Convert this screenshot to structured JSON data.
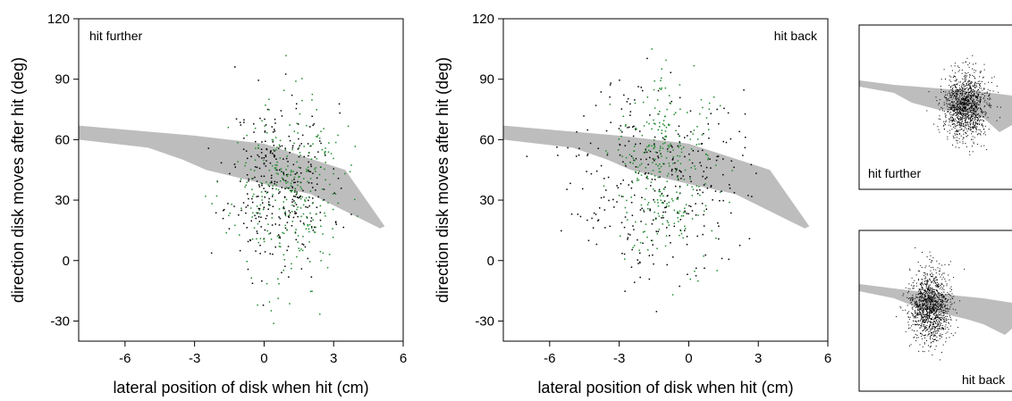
{
  "chart_data": [
    {
      "type": "scatter",
      "title": "",
      "annotation": "hit further",
      "xlabel": "lateral position of disk when hit (cm)",
      "ylabel": "direction disk moves after hit (deg)",
      "xlim": [
        -8,
        6
      ],
      "ylim": [
        -40,
        120
      ],
      "xticks": [
        -6,
        -3,
        0,
        3,
        6
      ],
      "yticks": [
        -30,
        0,
        30,
        60,
        90,
        120
      ],
      "grid": false,
      "band": {
        "upper": [
          [
            -8,
            67
          ],
          [
            -3,
            62
          ],
          [
            0,
            58
          ],
          [
            3.5,
            45
          ],
          [
            5.2,
            17
          ]
        ],
        "lower": [
          [
            -8,
            60
          ],
          [
            -5,
            56
          ],
          [
            -3.5,
            50
          ],
          [
            -2.5,
            45
          ],
          [
            0,
            38
          ],
          [
            2,
            33
          ],
          [
            5,
            16
          ]
        ]
      },
      "series": [
        {
          "color": "#000000",
          "cluster": {
            "x_mean": 0.7,
            "x_sd": 1.1,
            "y_mean": 38,
            "y_sd": 20,
            "n": 330,
            "seed": 11
          }
        },
        {
          "color": "#1f8a2e",
          "cluster": {
            "x_mean": 1.0,
            "x_sd": 1.2,
            "y_mean": 34,
            "y_sd": 22,
            "n": 300,
            "seed": 23
          }
        }
      ]
    },
    {
      "type": "scatter",
      "title": "",
      "annotation": "hit back",
      "xlabel": "lateral position of disk when hit (cm)",
      "ylabel": "direction disk moves after hit (deg)",
      "xlim": [
        -8,
        6
      ],
      "ylim": [
        -40,
        120
      ],
      "xticks": [
        -6,
        -3,
        0,
        3,
        6
      ],
      "yticks": [
        -30,
        0,
        30,
        60,
        90,
        120
      ],
      "grid": false,
      "band": {
        "upper": [
          [
            -8,
            67
          ],
          [
            -3,
            62
          ],
          [
            0,
            58
          ],
          [
            3.5,
            45
          ],
          [
            5.2,
            17
          ]
        ],
        "lower": [
          [
            -8,
            60
          ],
          [
            -5,
            56
          ],
          [
            -3.5,
            50
          ],
          [
            -2.5,
            45
          ],
          [
            0,
            38
          ],
          [
            2,
            33
          ],
          [
            5,
            16
          ]
        ]
      },
      "series": [
        {
          "color": "#000000",
          "cluster": {
            "x_mean": -1.4,
            "x_sd": 1.8,
            "y_mean": 42,
            "y_sd": 24,
            "n": 330,
            "seed": 37
          }
        },
        {
          "color": "#1f8a2e",
          "cluster": {
            "x_mean": -1.0,
            "x_sd": 1.1,
            "y_mean": 46,
            "y_sd": 22,
            "n": 300,
            "seed": 41
          }
        }
      ]
    },
    {
      "type": "scatter",
      "annotation": "hit further",
      "series": [
        {
          "color": "#000000",
          "cluster": {
            "x_mean": 0.5,
            "x_sd": 0.9,
            "y_mean": 0.5,
            "y_sd": 0.55,
            "n": 1200,
            "seed": 53
          }
        }
      ]
    },
    {
      "type": "scatter",
      "annotation": "hit back",
      "series": [
        {
          "color": "#000000",
          "cluster": {
            "x_mean": -0.3,
            "x_sd": 0.8,
            "y_mean": 0.4,
            "y_sd": 0.6,
            "n": 1200,
            "seed": 67
          }
        }
      ]
    }
  ],
  "colors": {
    "band": "#bdbdbd",
    "black_points": "#000000",
    "green_points": "#1f8a2e"
  }
}
